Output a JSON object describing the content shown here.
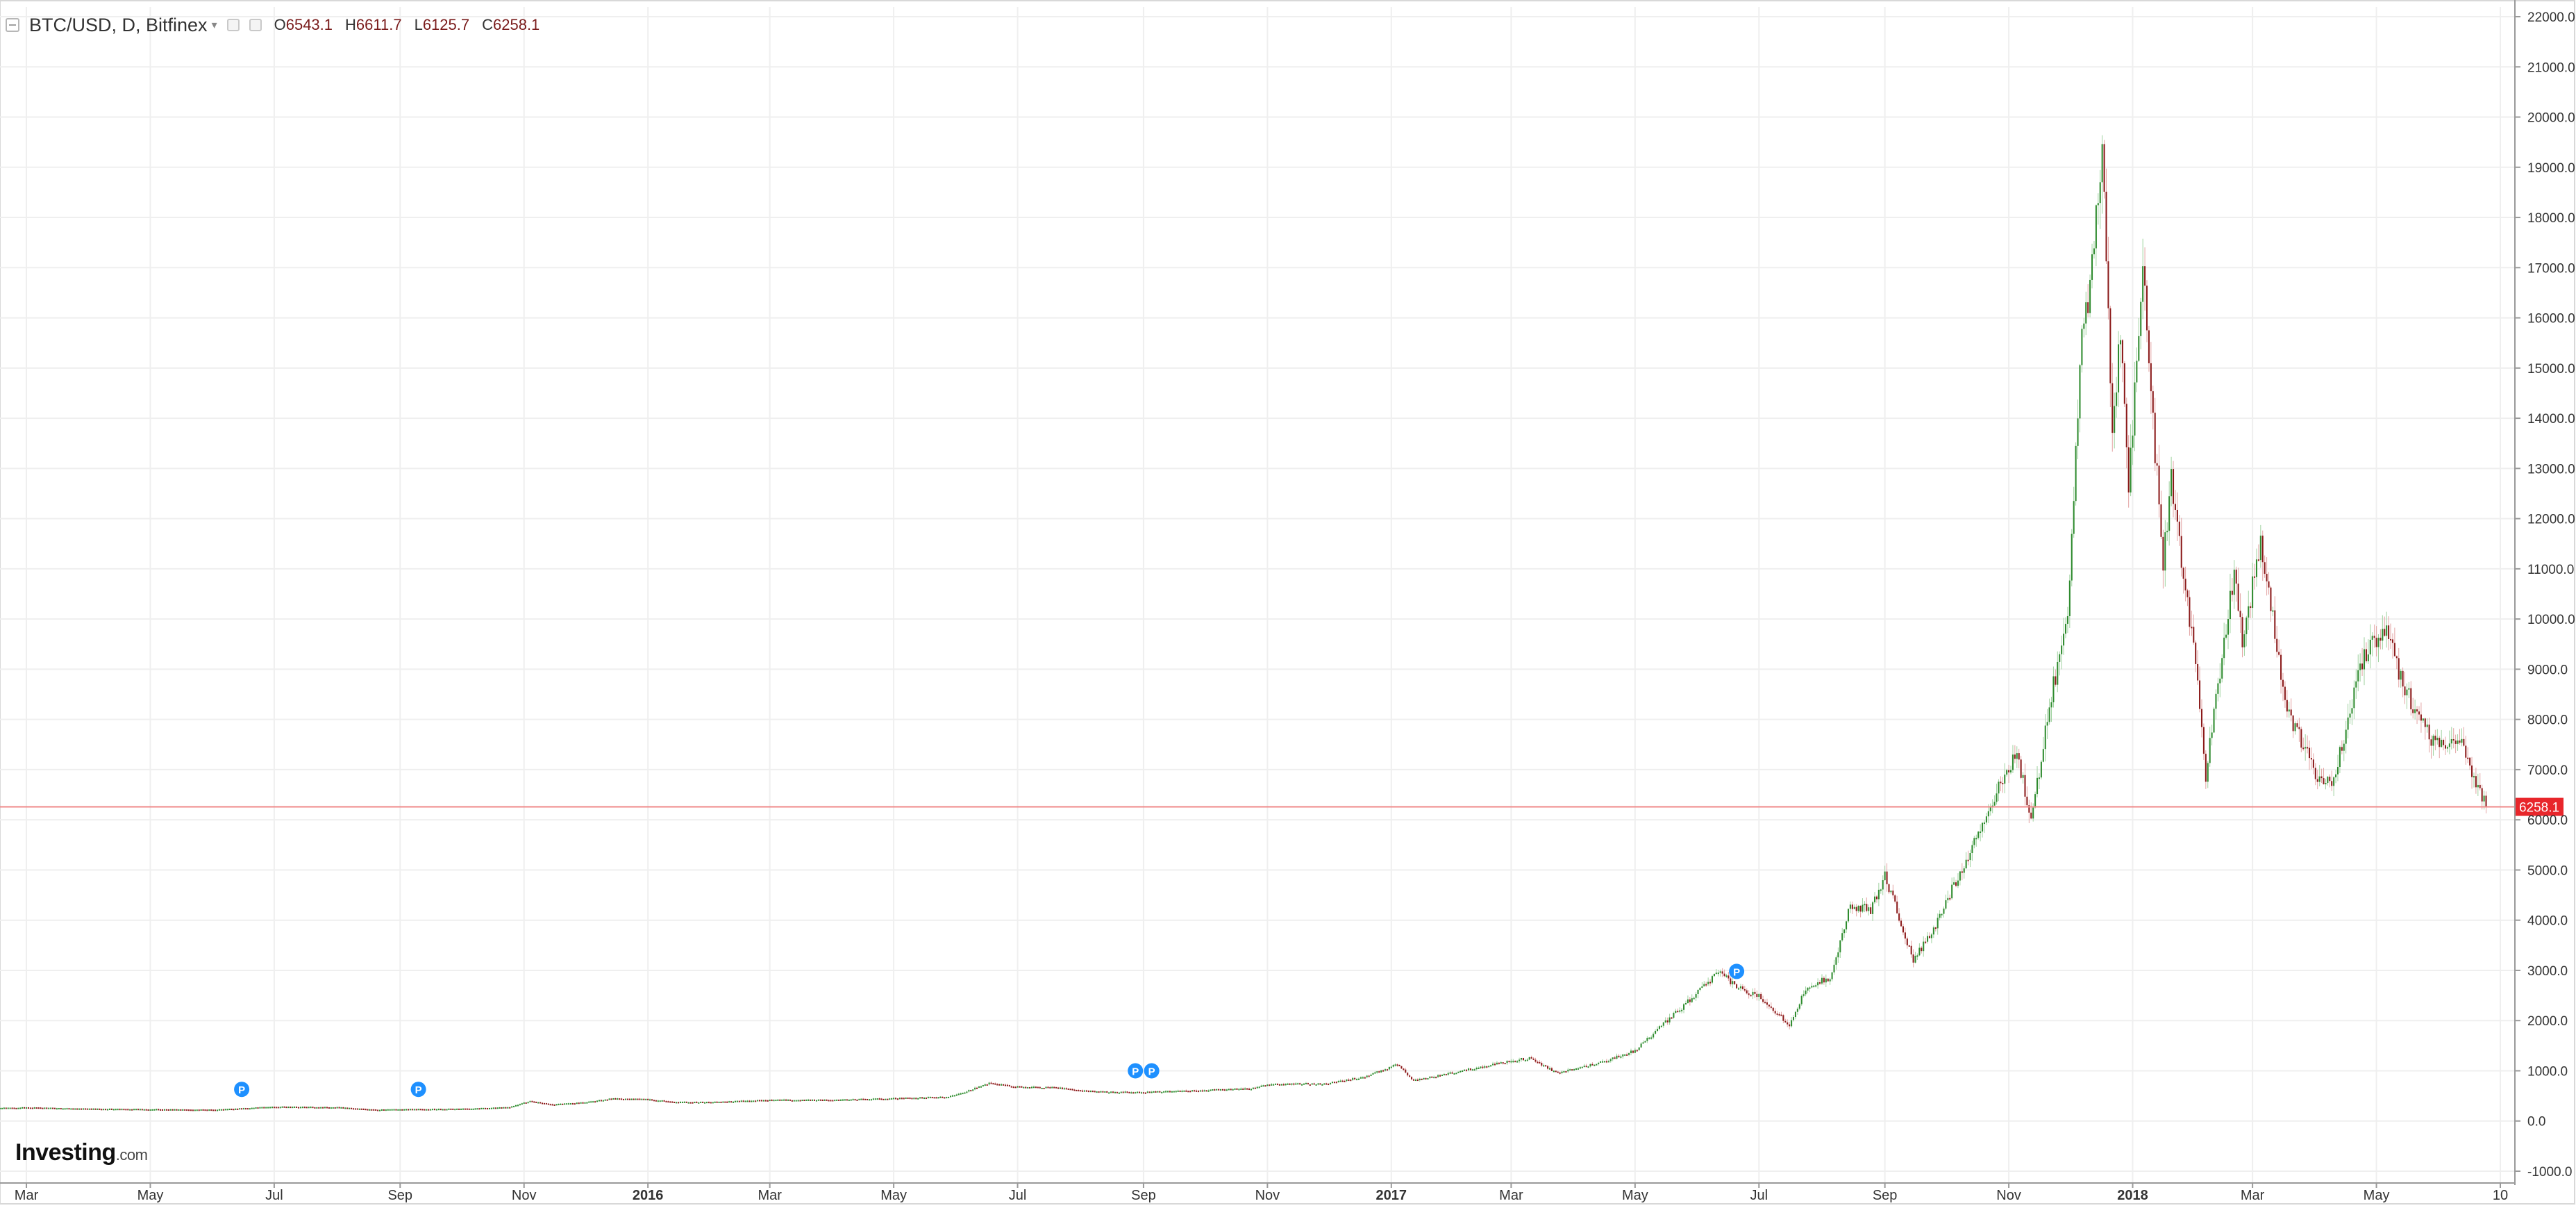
{
  "header": {
    "symbol": "BTC/USD, D, Bitfinex",
    "open_label": "O",
    "open_value": "6543.1",
    "high_label": "H",
    "high_value": "6611.7",
    "low_label": "L",
    "low_value": "6125.7",
    "close_label": "C",
    "close_value": "6258.1"
  },
  "brand": {
    "name": "Investing",
    "suffix": ".com"
  },
  "colors": {
    "up": "#2e8b2e",
    "down": "#8b1a1a",
    "price_line": "#ef8a8a",
    "price_tag": "#e8262b",
    "event_marker": "#1e90ff",
    "grid": "#efefef"
  },
  "chart_data": {
    "type": "candlestick",
    "y_ticks": [
      -1000,
      0,
      1000,
      2000,
      3000,
      4000,
      5000,
      6000,
      7000,
      8000,
      9000,
      10000,
      11000,
      12000,
      13000,
      14000,
      15000,
      16000,
      17000,
      18000,
      19000,
      20000,
      21000,
      22000
    ],
    "ylim": [
      -1200,
      22200
    ],
    "x_ticks": [
      {
        "date": "2015-03-01",
        "label": "Mar",
        "bold": false
      },
      {
        "date": "2015-05-01",
        "label": "May",
        "bold": false
      },
      {
        "date": "2015-07-01",
        "label": "Jul",
        "bold": false
      },
      {
        "date": "2015-09-01",
        "label": "Sep",
        "bold": false
      },
      {
        "date": "2015-11-01",
        "label": "Nov",
        "bold": false
      },
      {
        "date": "2016-01-01",
        "label": "2016",
        "bold": true
      },
      {
        "date": "2016-03-01",
        "label": "Mar",
        "bold": false
      },
      {
        "date": "2016-05-01",
        "label": "May",
        "bold": false
      },
      {
        "date": "2016-07-01",
        "label": "Jul",
        "bold": false
      },
      {
        "date": "2016-09-01",
        "label": "Sep",
        "bold": false
      },
      {
        "date": "2016-11-01",
        "label": "Nov",
        "bold": false
      },
      {
        "date": "2017-01-01",
        "label": "2017",
        "bold": true
      },
      {
        "date": "2017-03-01",
        "label": "Mar",
        "bold": false
      },
      {
        "date": "2017-05-01",
        "label": "May",
        "bold": false
      },
      {
        "date": "2017-07-01",
        "label": "Jul",
        "bold": false
      },
      {
        "date": "2017-09-01",
        "label": "Sep",
        "bold": false
      },
      {
        "date": "2017-11-01",
        "label": "Nov",
        "bold": false
      },
      {
        "date": "2018-01-01",
        "label": "2018",
        "bold": true
      },
      {
        "date": "2018-03-01",
        "label": "Mar",
        "bold": false
      },
      {
        "date": "2018-05-01",
        "label": "May",
        "bold": false
      },
      {
        "date": "2018-07-01",
        "label": "10",
        "bold": false
      }
    ],
    "series": [
      {
        "points": [
          [
            "2015-02-16",
            260
          ],
          [
            "2015-03-01",
            270
          ],
          [
            "2015-04-01",
            245
          ],
          [
            "2015-05-01",
            235
          ],
          [
            "2015-06-01",
            225
          ],
          [
            "2015-07-01",
            285
          ],
          [
            "2015-08-01",
            275
          ],
          [
            "2015-08-20",
            225
          ],
          [
            "2015-09-01",
            235
          ],
          [
            "2015-10-01",
            245
          ],
          [
            "2015-10-25",
            275
          ],
          [
            "2015-11-04",
            400
          ],
          [
            "2015-11-15",
            330
          ],
          [
            "2015-12-01",
            370
          ],
          [
            "2015-12-15",
            450
          ],
          [
            "2016-01-01",
            430
          ],
          [
            "2016-01-15",
            380
          ],
          [
            "2016-02-01",
            375
          ],
          [
            "2016-03-01",
            420
          ],
          [
            "2016-04-01",
            420
          ],
          [
            "2016-05-01",
            450
          ],
          [
            "2016-05-27",
            480
          ],
          [
            "2016-06-05",
            580
          ],
          [
            "2016-06-17",
            750
          ],
          [
            "2016-07-01",
            680
          ],
          [
            "2016-07-20",
            665
          ],
          [
            "2016-08-02",
            600
          ],
          [
            "2016-08-15",
            575
          ],
          [
            "2016-09-01",
            575
          ],
          [
            "2016-10-01",
            615
          ],
          [
            "2016-10-25",
            650
          ],
          [
            "2016-11-01",
            730
          ],
          [
            "2016-12-01",
            750
          ],
          [
            "2016-12-20",
            890
          ],
          [
            "2017-01-04",
            1130
          ],
          [
            "2017-01-12",
            800
          ],
          [
            "2017-02-01",
            970
          ],
          [
            "2017-03-01",
            1200
          ],
          [
            "2017-03-10",
            1250
          ],
          [
            "2017-03-24",
            950
          ],
          [
            "2017-04-15",
            1180
          ],
          [
            "2017-05-01",
            1400
          ],
          [
            "2017-05-25",
            2300
          ],
          [
            "2017-06-11",
            2950
          ],
          [
            "2017-06-25",
            2550
          ],
          [
            "2017-07-01",
            2500
          ],
          [
            "2017-07-16",
            1920
          ],
          [
            "2017-07-25",
            2700
          ],
          [
            "2017-08-05",
            2850
          ],
          [
            "2017-08-15",
            4300
          ],
          [
            "2017-08-25",
            4200
          ],
          [
            "2017-09-01",
            4900
          ],
          [
            "2017-09-15",
            3200
          ],
          [
            "2017-09-25",
            3800
          ],
          [
            "2017-10-01",
            4350
          ],
          [
            "2017-10-20",
            6000
          ],
          [
            "2017-11-05",
            7400
          ],
          [
            "2017-11-12",
            5900
          ],
          [
            "2017-11-20",
            8100
          ],
          [
            "2017-11-30",
            10000
          ],
          [
            "2017-12-07",
            16000
          ],
          [
            "2017-12-11",
            16500
          ],
          [
            "2017-12-17",
            19200
          ],
          [
            "2017-12-22",
            13800
          ],
          [
            "2017-12-26",
            15800
          ],
          [
            "2017-12-30",
            12600
          ],
          [
            "2018-01-06",
            17100
          ],
          [
            "2018-01-10",
            14500
          ],
          [
            "2018-01-16",
            11100
          ],
          [
            "2018-01-20",
            12800
          ],
          [
            "2018-02-01",
            9100
          ],
          [
            "2018-02-06",
            6900
          ],
          [
            "2018-02-12",
            8700
          ],
          [
            "2018-02-20",
            11000
          ],
          [
            "2018-02-24",
            9600
          ],
          [
            "2018-03-05",
            11500
          ],
          [
            "2018-03-18",
            8200
          ],
          [
            "2018-04-01",
            6900
          ],
          [
            "2018-04-10",
            6800
          ],
          [
            "2018-04-25",
            9300
          ],
          [
            "2018-05-05",
            9800
          ],
          [
            "2018-05-15",
            8600
          ],
          [
            "2018-05-30",
            7500
          ],
          [
            "2018-06-10",
            7650
          ],
          [
            "2018-06-24",
            6258.1
          ]
        ]
      }
    ],
    "events": [
      {
        "date": "2015-06-15",
        "value": 630
      },
      {
        "date": "2015-09-10",
        "value": 630
      },
      {
        "date": "2016-08-28",
        "value": 1000
      },
      {
        "date": "2016-09-05",
        "value": 1000
      },
      {
        "date": "2017-06-20",
        "value": 2980
      }
    ],
    "current_price": 6258.1,
    "current_price_label": "6258.1"
  }
}
